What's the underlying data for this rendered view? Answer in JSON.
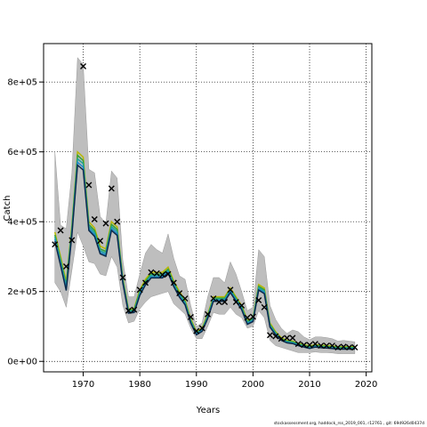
{
  "chart_data": {
    "type": "line",
    "title": "",
    "xlabel": "Years",
    "ylabel": "Catch",
    "xlim": [
      1963,
      2021
    ],
    "ylim": [
      -30000,
      910000
    ],
    "x_ticks": [
      1970,
      1980,
      1990,
      2000,
      2010,
      2020
    ],
    "x_tick_labels": [
      "1970",
      "1980",
      "1990",
      "2000",
      "2010",
      "2020"
    ],
    "y_ticks": [
      0,
      200000,
      400000,
      600000,
      800000
    ],
    "y_tick_labels": [
      "0e+00",
      "2e+05",
      "4e+05",
      "6e+05",
      "8e+05"
    ],
    "grid": true,
    "band_color": "#bebebe",
    "line_colors": [
      "#b8b800",
      "#35a135",
      "#1fa39a",
      "#1e88c8",
      "#0b2a4a"
    ],
    "marker_color": "#000000",
    "years": [
      1965,
      1966,
      1967,
      1968,
      1969,
      1970,
      1971,
      1972,
      1973,
      1974,
      1975,
      1976,
      1977,
      1978,
      1979,
      1980,
      1981,
      1982,
      1983,
      1984,
      1985,
      1986,
      1987,
      1988,
      1989,
      1990,
      1991,
      1992,
      1993,
      1994,
      1995,
      1996,
      1997,
      1998,
      1999,
      2000,
      2001,
      2002,
      2003,
      2004,
      2005,
      2006,
      2007,
      2008,
      2009,
      2010,
      2011,
      2012,
      2013,
      2014,
      2015,
      2016,
      2017,
      2018
    ],
    "observed_catch": [
      335000,
      375000,
      272000,
      347000,
      null,
      845000,
      505000,
      407000,
      345000,
      395000,
      495000,
      400000,
      240000,
      145000,
      148000,
      205000,
      225000,
      255000,
      252000,
      248000,
      250000,
      225000,
      195000,
      180000,
      127000,
      87000,
      95000,
      135000,
      180000,
      170000,
      170000,
      205000,
      170000,
      160000,
      125000,
      128000,
      175000,
      155000,
      75000,
      72000,
      65000,
      67000,
      67000,
      50000,
      47000,
      47000,
      50000,
      45000,
      45000,
      45000,
      40000,
      42000,
      40000,
      40000
    ],
    "band_lower": [
      225000,
      200000,
      155000,
      260000,
      370000,
      330000,
      285000,
      280000,
      250000,
      245000,
      300000,
      270000,
      160000,
      110000,
      115000,
      150000,
      170000,
      185000,
      190000,
      195000,
      200000,
      165000,
      150000,
      135000,
      95000,
      65000,
      65000,
      100000,
      140000,
      135000,
      135000,
      155000,
      135000,
      125000,
      95000,
      100000,
      145000,
      125000,
      60000,
      45000,
      40000,
      35000,
      30000,
      25000,
      25000,
      25000,
      27000,
      25000,
      25000,
      24000,
      22000,
      22000,
      22000,
      22000
    ],
    "band_upper": [
      600000,
      390000,
      380000,
      540000,
      870000,
      850000,
      550000,
      540000,
      415000,
      395000,
      545000,
      525000,
      290000,
      185000,
      185000,
      250000,
      310000,
      335000,
      320000,
      310000,
      365000,
      295000,
      245000,
      235000,
      160000,
      100000,
      110000,
      185000,
      240000,
      240000,
      225000,
      285000,
      250000,
      200000,
      145000,
      155000,
      320000,
      300000,
      160000,
      120000,
      95000,
      80000,
      90000,
      85000,
      70000,
      62000,
      70000,
      70000,
      68000,
      65000,
      58000,
      60000,
      58000,
      56000
    ],
    "series": [
      {
        "values": [
          370000,
          300000,
          228000,
          390000,
          600000,
          585000,
          400000,
          382000,
          330000,
          322000,
          400000,
          385000,
          240000,
          150000,
          152000,
          205000,
          235000,
          255000,
          255000,
          255000,
          270000,
          230000,
          200000,
          175000,
          122000,
          85000,
          95000,
          135000,
          185000,
          185000,
          185000,
          210000,
          185000,
          160000,
          118000,
          125000,
          220000,
          210000,
          110000,
          85000,
          68000,
          60000,
          58000,
          52000,
          48000,
          44000,
          48000,
          46000,
          45000,
          44000,
          42000,
          42000,
          42000,
          42000
        ]
      },
      {
        "values": [
          362000,
          292000,
          220000,
          382000,
          590000,
          575000,
          392000,
          375000,
          322000,
          315000,
          392000,
          378000,
          235000,
          146000,
          148000,
          200000,
          230000,
          250000,
          250000,
          250000,
          264000,
          225000,
          195000,
          171000,
          118000,
          82000,
          92000,
          131000,
          181000,
          181000,
          181000,
          206000,
          181000,
          156000,
          114000,
          122000,
          215000,
          205000,
          106000,
          82000,
          65000,
          58000,
          56000,
          50000,
          46000,
          42000,
          46000,
          44000,
          43000,
          42000,
          40000,
          40000,
          40000,
          40000
        ]
      },
      {
        "values": [
          356000,
          286000,
          214000,
          375000,
          580000,
          566000,
          386000,
          369000,
          317000,
          310000,
          386000,
          372000,
          231000,
          143000,
          145000,
          196000,
          226000,
          246000,
          246000,
          246000,
          260000,
          221000,
          191000,
          168000,
          115000,
          80000,
          90000,
          128000,
          178000,
          178000,
          178000,
          203000,
          178000,
          153000,
          111000,
          119000,
          211000,
          201000,
          103000,
          80000,
          63000,
          56000,
          54000,
          48000,
          44000,
          40000,
          44000,
          42000,
          41000,
          40000,
          38000,
          38000,
          38000,
          38000
        ]
      },
      {
        "values": [
          350000,
          280000,
          208000,
          368000,
          570000,
          556000,
          380000,
          363000,
          312000,
          305000,
          380000,
          366000,
          227000,
          140000,
          142000,
          192000,
          222000,
          242000,
          242000,
          242000,
          256000,
          217000,
          187000,
          165000,
          112000,
          78000,
          88000,
          125000,
          175000,
          175000,
          175000,
          200000,
          175000,
          150000,
          108000,
          116000,
          207000,
          197000,
          100000,
          78000,
          61000,
          54000,
          52000,
          46000,
          42000,
          38000,
          42000,
          40000,
          39000,
          38000,
          36000,
          36000,
          36000,
          36000
        ]
      },
      {
        "values": [
          344000,
          275000,
          203000,
          362000,
          562000,
          548000,
          375000,
          358000,
          308000,
          301000,
          375000,
          361000,
          224000,
          138000,
          140000,
          189000,
          219000,
          239000,
          239000,
          239000,
          253000,
          214000,
          184000,
          162000,
          110000,
          76000,
          86000,
          123000,
          172000,
          172000,
          172000,
          197000,
          172000,
          148000,
          106000,
          114000,
          204000,
          194000,
          98000,
          76000,
          60000,
          53000,
          51000,
          45000,
          41000,
          37000,
          41000,
          39000,
          38000,
          37000,
          35000,
          35000,
          35000,
          35000
        ]
      }
    ]
  },
  "footer": {
    "text": "stockassessment.org, haddock_rss_2019_001, r12761 , git: 69d926d0437d"
  }
}
